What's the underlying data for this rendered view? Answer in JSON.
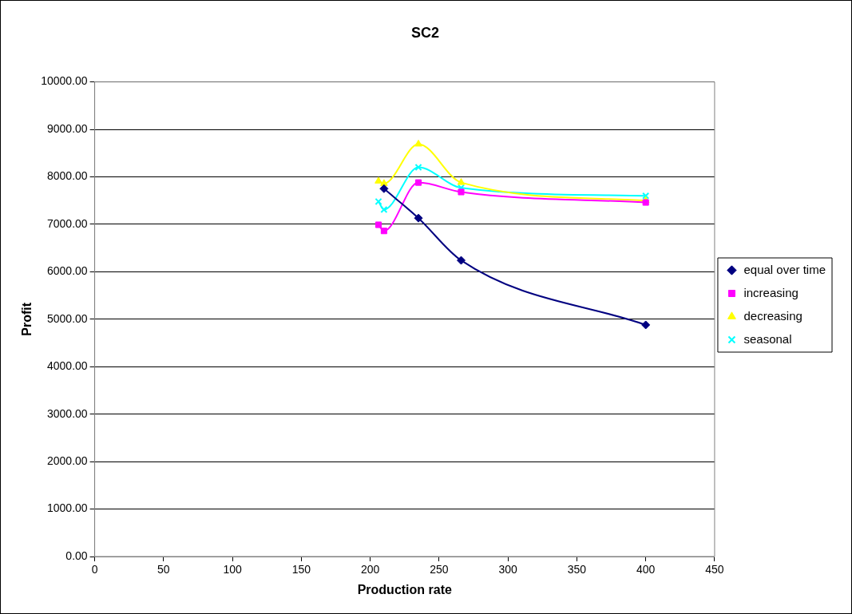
{
  "chart_data": {
    "type": "line",
    "title": "SC2",
    "xlabel": "Production rate",
    "ylabel": "Profit",
    "xlim": [
      0,
      450
    ],
    "xticks": [
      0,
      50,
      100,
      150,
      200,
      250,
      300,
      350,
      400,
      450
    ],
    "ylim": [
      0,
      10000
    ],
    "yticks": [
      {
        "value": 0,
        "label": "0.00"
      },
      {
        "value": 1000,
        "label": "1000.00"
      },
      {
        "value": 2000,
        "label": "2000.00"
      },
      {
        "value": 3000,
        "label": "3000.00"
      },
      {
        "value": 4000,
        "label": "4000.00"
      },
      {
        "value": 5000,
        "label": "5000.00"
      },
      {
        "value": 6000,
        "label": "6000.00"
      },
      {
        "value": 7000,
        "label": "7000.00"
      },
      {
        "value": 8000,
        "label": "8000.00"
      },
      {
        "value": 9000,
        "label": "9000.00"
      },
      {
        "value": 10000,
        "label": "10000.00"
      }
    ],
    "grid": "y",
    "legend": "right",
    "line_style": "solid",
    "series": [
      {
        "name": "equal over time",
        "color": "#000080",
        "marker": "diamond",
        "x": [
          210,
          235,
          266,
          400
        ],
        "values": [
          7750,
          7130,
          6240,
          4880
        ]
      },
      {
        "name": "increasing",
        "color": "#ff00ff",
        "marker": "square",
        "x": [
          206,
          210,
          235,
          266,
          400
        ],
        "values": [
          6990,
          6860,
          7880,
          7680,
          7460
        ]
      },
      {
        "name": "decreasing",
        "color": "#ffff00",
        "marker": "triangle",
        "x": [
          206,
          210,
          235,
          266,
          400
        ],
        "values": [
          7910,
          7860,
          8690,
          7880,
          7500
        ]
      },
      {
        "name": "seasonal",
        "color": "#00ffff",
        "marker": "cross",
        "x": [
          206,
          210,
          235,
          266,
          400
        ],
        "values": [
          7480,
          7310,
          8200,
          7770,
          7600
        ]
      }
    ]
  }
}
